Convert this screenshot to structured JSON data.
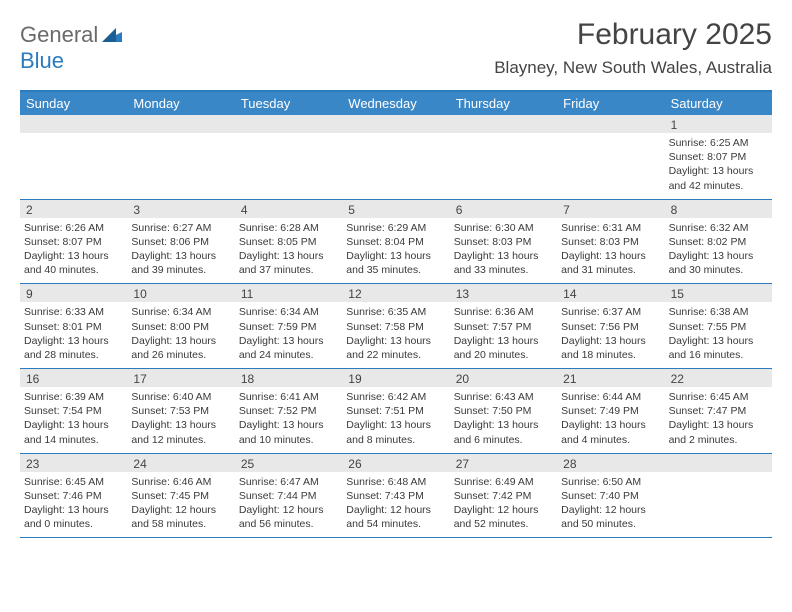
{
  "logo": {
    "text1": "General",
    "text2": "Blue"
  },
  "title": "February 2025",
  "location": "Blayney, New South Wales, Australia",
  "colors": {
    "header_bg": "#3a87c8",
    "border": "#2b7bbf",
    "daynum_bg": "#e8e8e8",
    "text": "#3a3a3a"
  },
  "weekdays": [
    "Sunday",
    "Monday",
    "Tuesday",
    "Wednesday",
    "Thursday",
    "Friday",
    "Saturday"
  ],
  "weeks": [
    [
      {
        "n": "",
        "empty": true
      },
      {
        "n": "",
        "empty": true
      },
      {
        "n": "",
        "empty": true
      },
      {
        "n": "",
        "empty": true
      },
      {
        "n": "",
        "empty": true
      },
      {
        "n": "",
        "empty": true
      },
      {
        "n": "1",
        "sr": "Sunrise: 6:25 AM",
        "ss": "Sunset: 8:07 PM",
        "dl": "Daylight: 13 hours and 42 minutes."
      }
    ],
    [
      {
        "n": "2",
        "sr": "Sunrise: 6:26 AM",
        "ss": "Sunset: 8:07 PM",
        "dl": "Daylight: 13 hours and 40 minutes."
      },
      {
        "n": "3",
        "sr": "Sunrise: 6:27 AM",
        "ss": "Sunset: 8:06 PM",
        "dl": "Daylight: 13 hours and 39 minutes."
      },
      {
        "n": "4",
        "sr": "Sunrise: 6:28 AM",
        "ss": "Sunset: 8:05 PM",
        "dl": "Daylight: 13 hours and 37 minutes."
      },
      {
        "n": "5",
        "sr": "Sunrise: 6:29 AM",
        "ss": "Sunset: 8:04 PM",
        "dl": "Daylight: 13 hours and 35 minutes."
      },
      {
        "n": "6",
        "sr": "Sunrise: 6:30 AM",
        "ss": "Sunset: 8:03 PM",
        "dl": "Daylight: 13 hours and 33 minutes."
      },
      {
        "n": "7",
        "sr": "Sunrise: 6:31 AM",
        "ss": "Sunset: 8:03 PM",
        "dl": "Daylight: 13 hours and 31 minutes."
      },
      {
        "n": "8",
        "sr": "Sunrise: 6:32 AM",
        "ss": "Sunset: 8:02 PM",
        "dl": "Daylight: 13 hours and 30 minutes."
      }
    ],
    [
      {
        "n": "9",
        "sr": "Sunrise: 6:33 AM",
        "ss": "Sunset: 8:01 PM",
        "dl": "Daylight: 13 hours and 28 minutes."
      },
      {
        "n": "10",
        "sr": "Sunrise: 6:34 AM",
        "ss": "Sunset: 8:00 PM",
        "dl": "Daylight: 13 hours and 26 minutes."
      },
      {
        "n": "11",
        "sr": "Sunrise: 6:34 AM",
        "ss": "Sunset: 7:59 PM",
        "dl": "Daylight: 13 hours and 24 minutes."
      },
      {
        "n": "12",
        "sr": "Sunrise: 6:35 AM",
        "ss": "Sunset: 7:58 PM",
        "dl": "Daylight: 13 hours and 22 minutes."
      },
      {
        "n": "13",
        "sr": "Sunrise: 6:36 AM",
        "ss": "Sunset: 7:57 PM",
        "dl": "Daylight: 13 hours and 20 minutes."
      },
      {
        "n": "14",
        "sr": "Sunrise: 6:37 AM",
        "ss": "Sunset: 7:56 PM",
        "dl": "Daylight: 13 hours and 18 minutes."
      },
      {
        "n": "15",
        "sr": "Sunrise: 6:38 AM",
        "ss": "Sunset: 7:55 PM",
        "dl": "Daylight: 13 hours and 16 minutes."
      }
    ],
    [
      {
        "n": "16",
        "sr": "Sunrise: 6:39 AM",
        "ss": "Sunset: 7:54 PM",
        "dl": "Daylight: 13 hours and 14 minutes."
      },
      {
        "n": "17",
        "sr": "Sunrise: 6:40 AM",
        "ss": "Sunset: 7:53 PM",
        "dl": "Daylight: 13 hours and 12 minutes."
      },
      {
        "n": "18",
        "sr": "Sunrise: 6:41 AM",
        "ss": "Sunset: 7:52 PM",
        "dl": "Daylight: 13 hours and 10 minutes."
      },
      {
        "n": "19",
        "sr": "Sunrise: 6:42 AM",
        "ss": "Sunset: 7:51 PM",
        "dl": "Daylight: 13 hours and 8 minutes."
      },
      {
        "n": "20",
        "sr": "Sunrise: 6:43 AM",
        "ss": "Sunset: 7:50 PM",
        "dl": "Daylight: 13 hours and 6 minutes."
      },
      {
        "n": "21",
        "sr": "Sunrise: 6:44 AM",
        "ss": "Sunset: 7:49 PM",
        "dl": "Daylight: 13 hours and 4 minutes."
      },
      {
        "n": "22",
        "sr": "Sunrise: 6:45 AM",
        "ss": "Sunset: 7:47 PM",
        "dl": "Daylight: 13 hours and 2 minutes."
      }
    ],
    [
      {
        "n": "23",
        "sr": "Sunrise: 6:45 AM",
        "ss": "Sunset: 7:46 PM",
        "dl": "Daylight: 13 hours and 0 minutes."
      },
      {
        "n": "24",
        "sr": "Sunrise: 6:46 AM",
        "ss": "Sunset: 7:45 PM",
        "dl": "Daylight: 12 hours and 58 minutes."
      },
      {
        "n": "25",
        "sr": "Sunrise: 6:47 AM",
        "ss": "Sunset: 7:44 PM",
        "dl": "Daylight: 12 hours and 56 minutes."
      },
      {
        "n": "26",
        "sr": "Sunrise: 6:48 AM",
        "ss": "Sunset: 7:43 PM",
        "dl": "Daylight: 12 hours and 54 minutes."
      },
      {
        "n": "27",
        "sr": "Sunrise: 6:49 AM",
        "ss": "Sunset: 7:42 PM",
        "dl": "Daylight: 12 hours and 52 minutes."
      },
      {
        "n": "28",
        "sr": "Sunrise: 6:50 AM",
        "ss": "Sunset: 7:40 PM",
        "dl": "Daylight: 12 hours and 50 minutes."
      },
      {
        "n": "",
        "empty": true
      }
    ]
  ]
}
